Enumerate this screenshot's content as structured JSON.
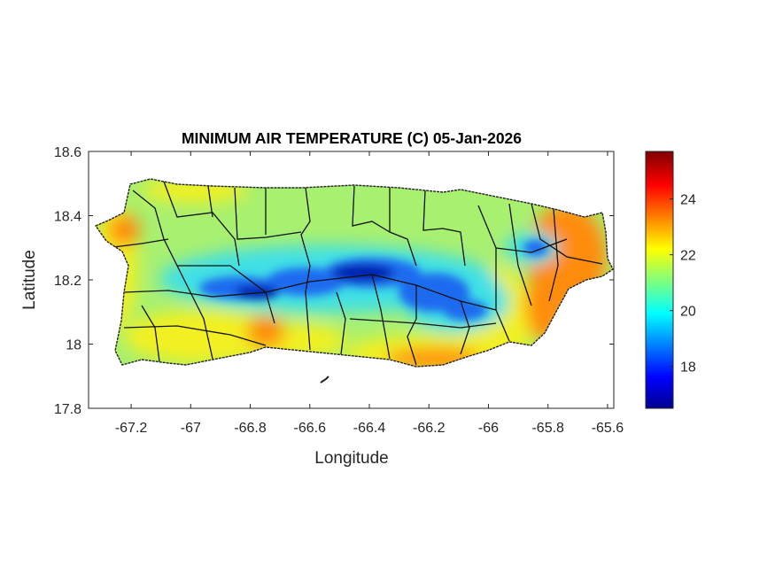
{
  "chart_data": {
    "type": "heatmap",
    "title": "MINIMUM AIR TEMPERATURE (C) 05-Jan-2026",
    "xlabel": "Longitude",
    "ylabel": "Latitude",
    "xlim": [
      -67.343,
      -65.579
    ],
    "ylim": [
      17.8,
      18.6
    ],
    "xticks": [
      -67.2,
      -67,
      -66.8,
      -66.6,
      -66.4,
      -66.2,
      -66,
      -65.8,
      -65.6
    ],
    "xtick_labels": [
      "-67.2",
      "-67",
      "-66.8",
      "-66.6",
      "-66.4",
      "-66.2",
      "-66",
      "-65.8",
      "-65.6"
    ],
    "yticks": [
      17.8,
      18,
      18.2,
      18.4,
      18.6
    ],
    "ytick_labels": [
      "17.8",
      "18",
      "18.2",
      "18.4",
      "18.6"
    ],
    "colormap": "jet",
    "colorbar": {
      "limits": [
        16.5,
        25.7
      ],
      "ticks": [
        18,
        20,
        22,
        24
      ],
      "tick_labels": [
        "18",
        "20",
        "22",
        "24"
      ],
      "location": "right"
    },
    "grid": false,
    "summary_pattern": {
      "cold_band": "central mountain range, approx 17-19 C",
      "warm_areas": "east and south coasts, approx 23-25 C",
      "typical": "21-22 C elsewhere"
    }
  },
  "colors": {
    "cold_core": "#0020b0",
    "cold": "#1a6af0",
    "cool": "#3fe0e6",
    "mild": "#a8f070",
    "warm": "#f2f020",
    "hot": "#ff8c10",
    "hottest": "#f02a00"
  }
}
